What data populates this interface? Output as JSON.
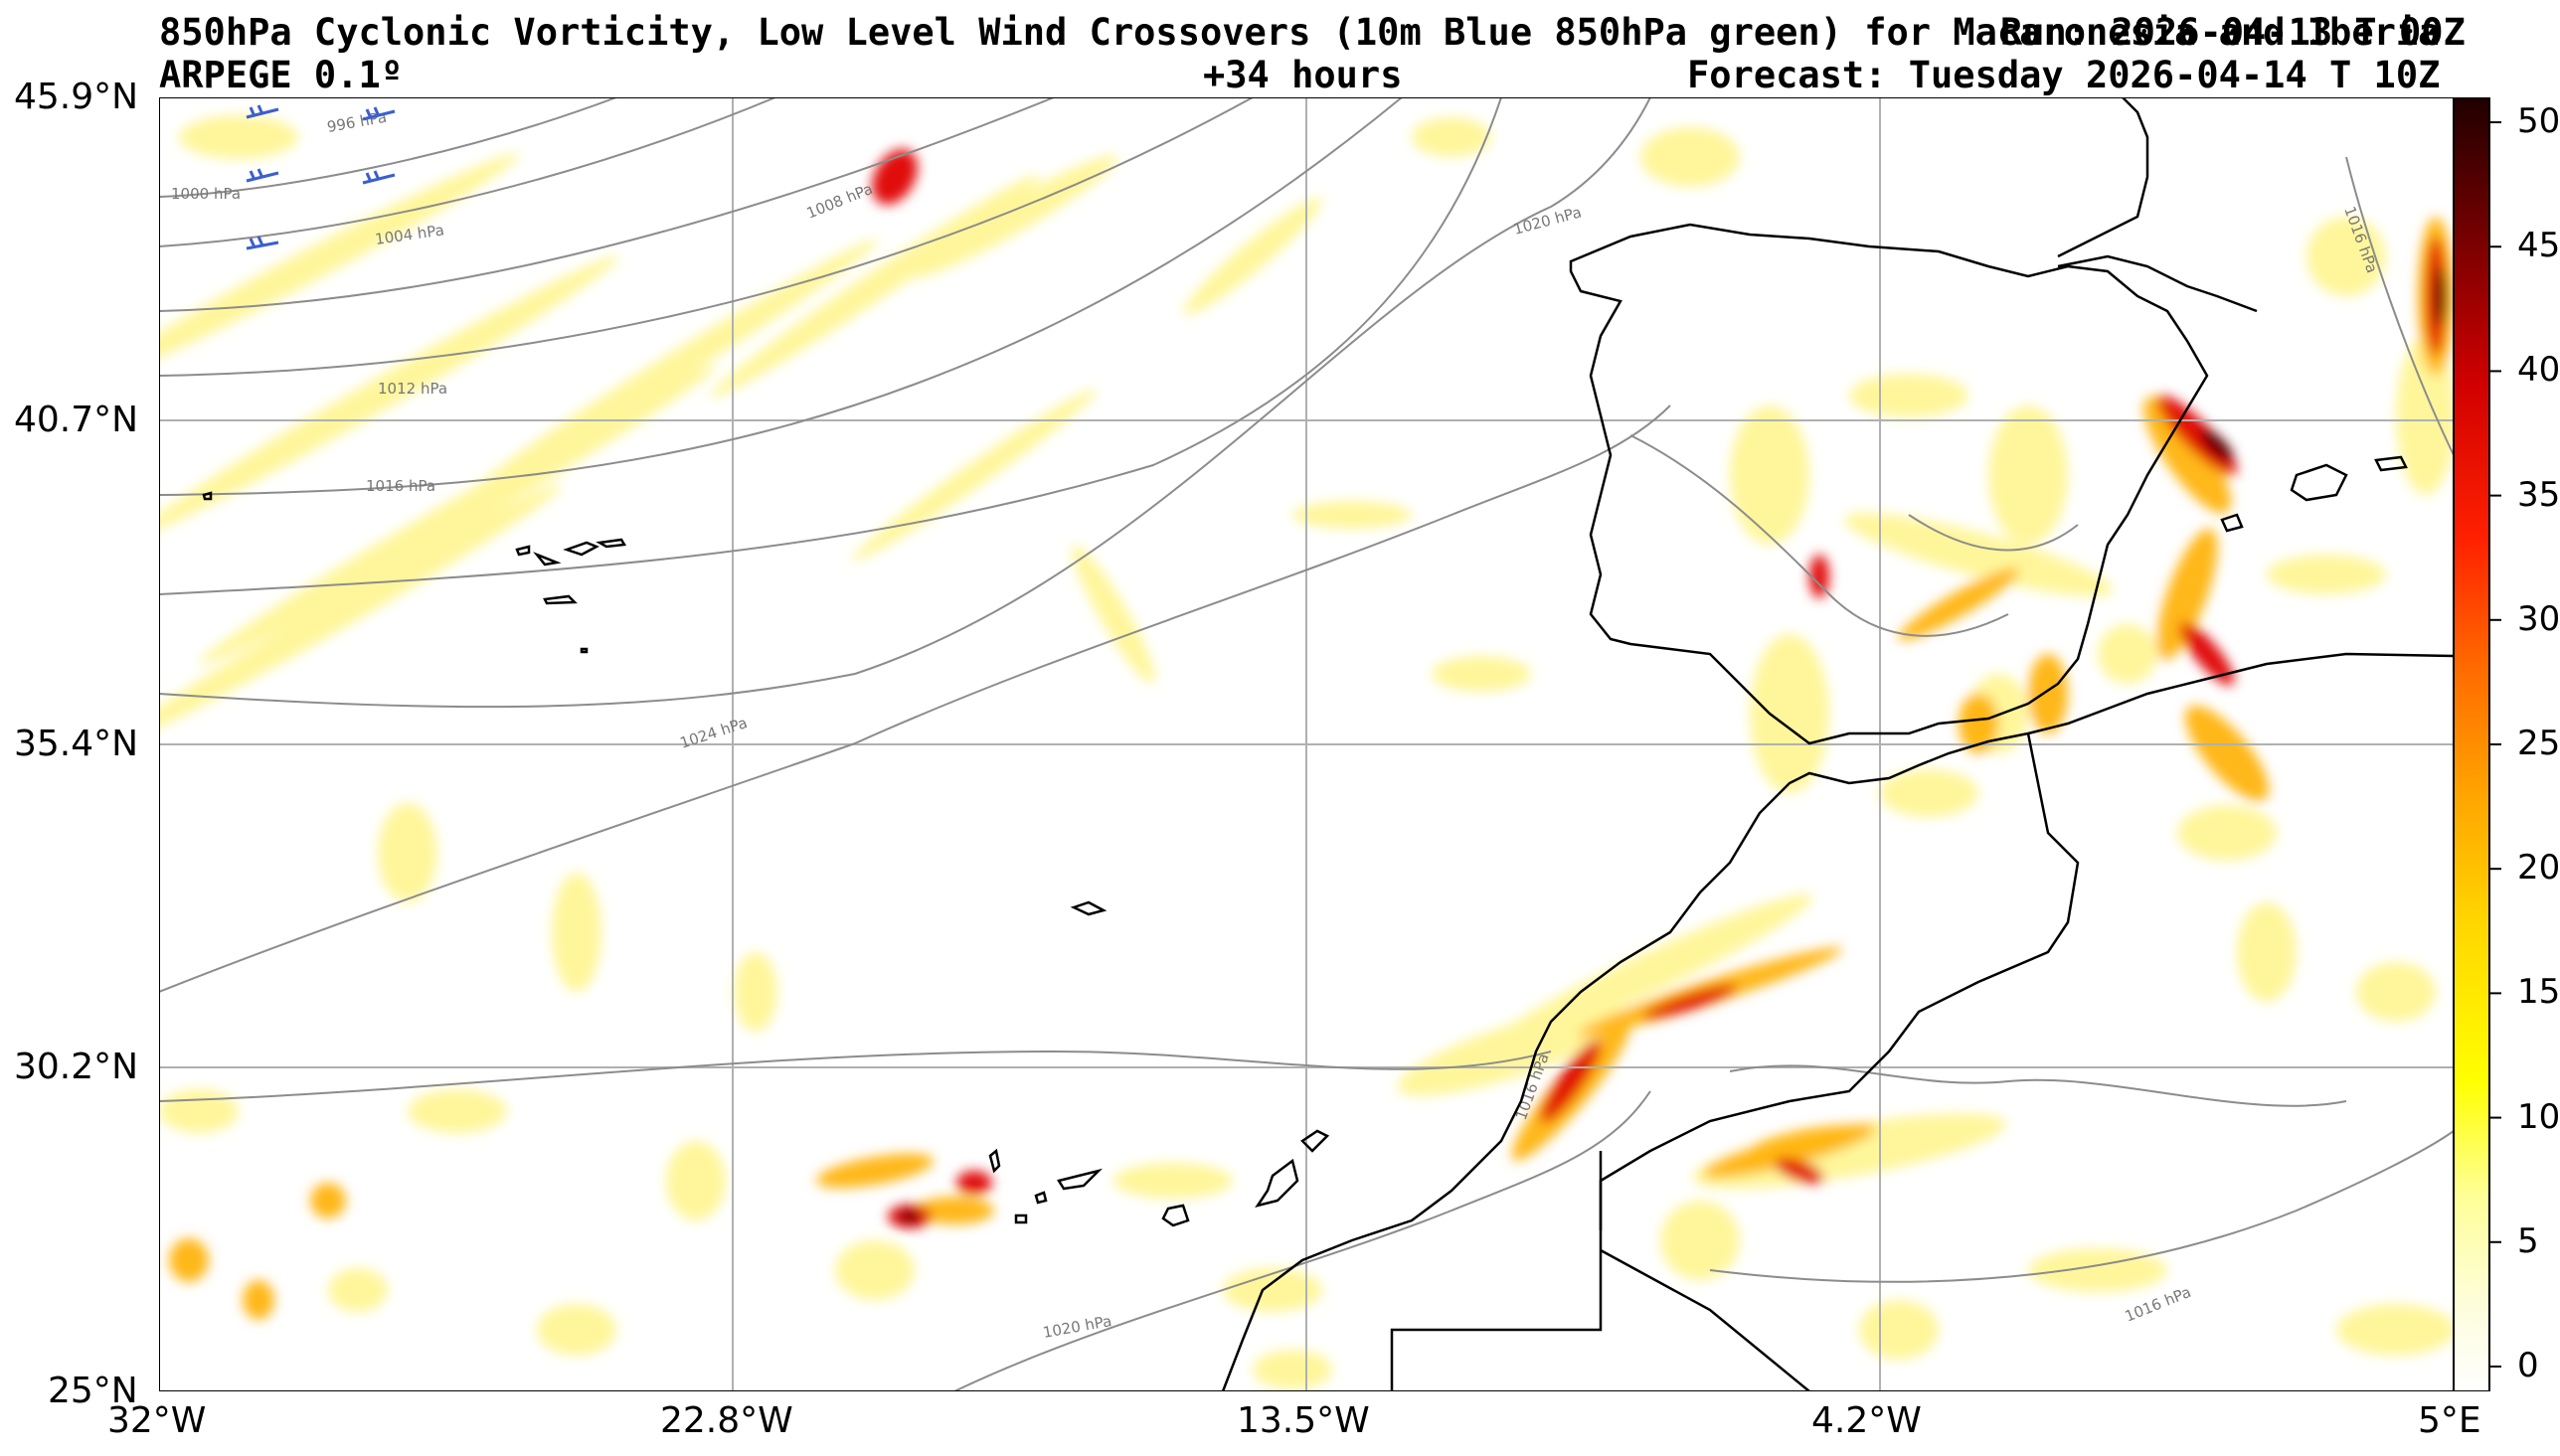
{
  "header": {
    "title_main": "850hPa Cyclonic Vorticity, Low Level Wind Crossovers (10m Blue 850hPa green) for Maca",
    "title_overlap": "Run: 2026-04-13 T 00Z",
    "title_tail": "ronesia and Iberia",
    "model": "ARPEGE 0.1º",
    "lead": "+34 hours",
    "forecast": "Forecast: Tuesday 2026-04-14 T 10Z"
  },
  "axes": {
    "lat_labels": [
      "45.9°N",
      "40.7°N",
      "35.4°N",
      "30.2°N",
      "25°N"
    ],
    "lon_labels": [
      "32°W",
      "22.8°W",
      "13.5°W",
      "4.2°W",
      "5°E"
    ]
  },
  "colorbar": {
    "ticks": [
      "50",
      "45",
      "40",
      "35",
      "30",
      "25",
      "20",
      "15",
      "10",
      "5",
      "0"
    ],
    "min": -1,
    "max": 51
  },
  "isobars": [
    "996 hPa",
    "1000 hPa",
    "1004 hPa",
    "1008 hPa",
    "1012 hPa",
    "1016 hPa",
    "1020 hPa",
    "1024 hPa",
    "1020 hPa",
    "1016 hPa",
    "1016 hPa",
    "1016 hPa"
  ],
  "colors": {
    "vort_low": "#ffff00",
    "vort_mid": "#ff8c00",
    "vort_high": "#ff0000",
    "vort_max": "#3a0000",
    "isobar": "#8c8c8c",
    "coast": "#000000",
    "grid": "#b0b0b0",
    "wind_10m": "#3a5fd0",
    "wind_850": "#2a9a2a"
  }
}
